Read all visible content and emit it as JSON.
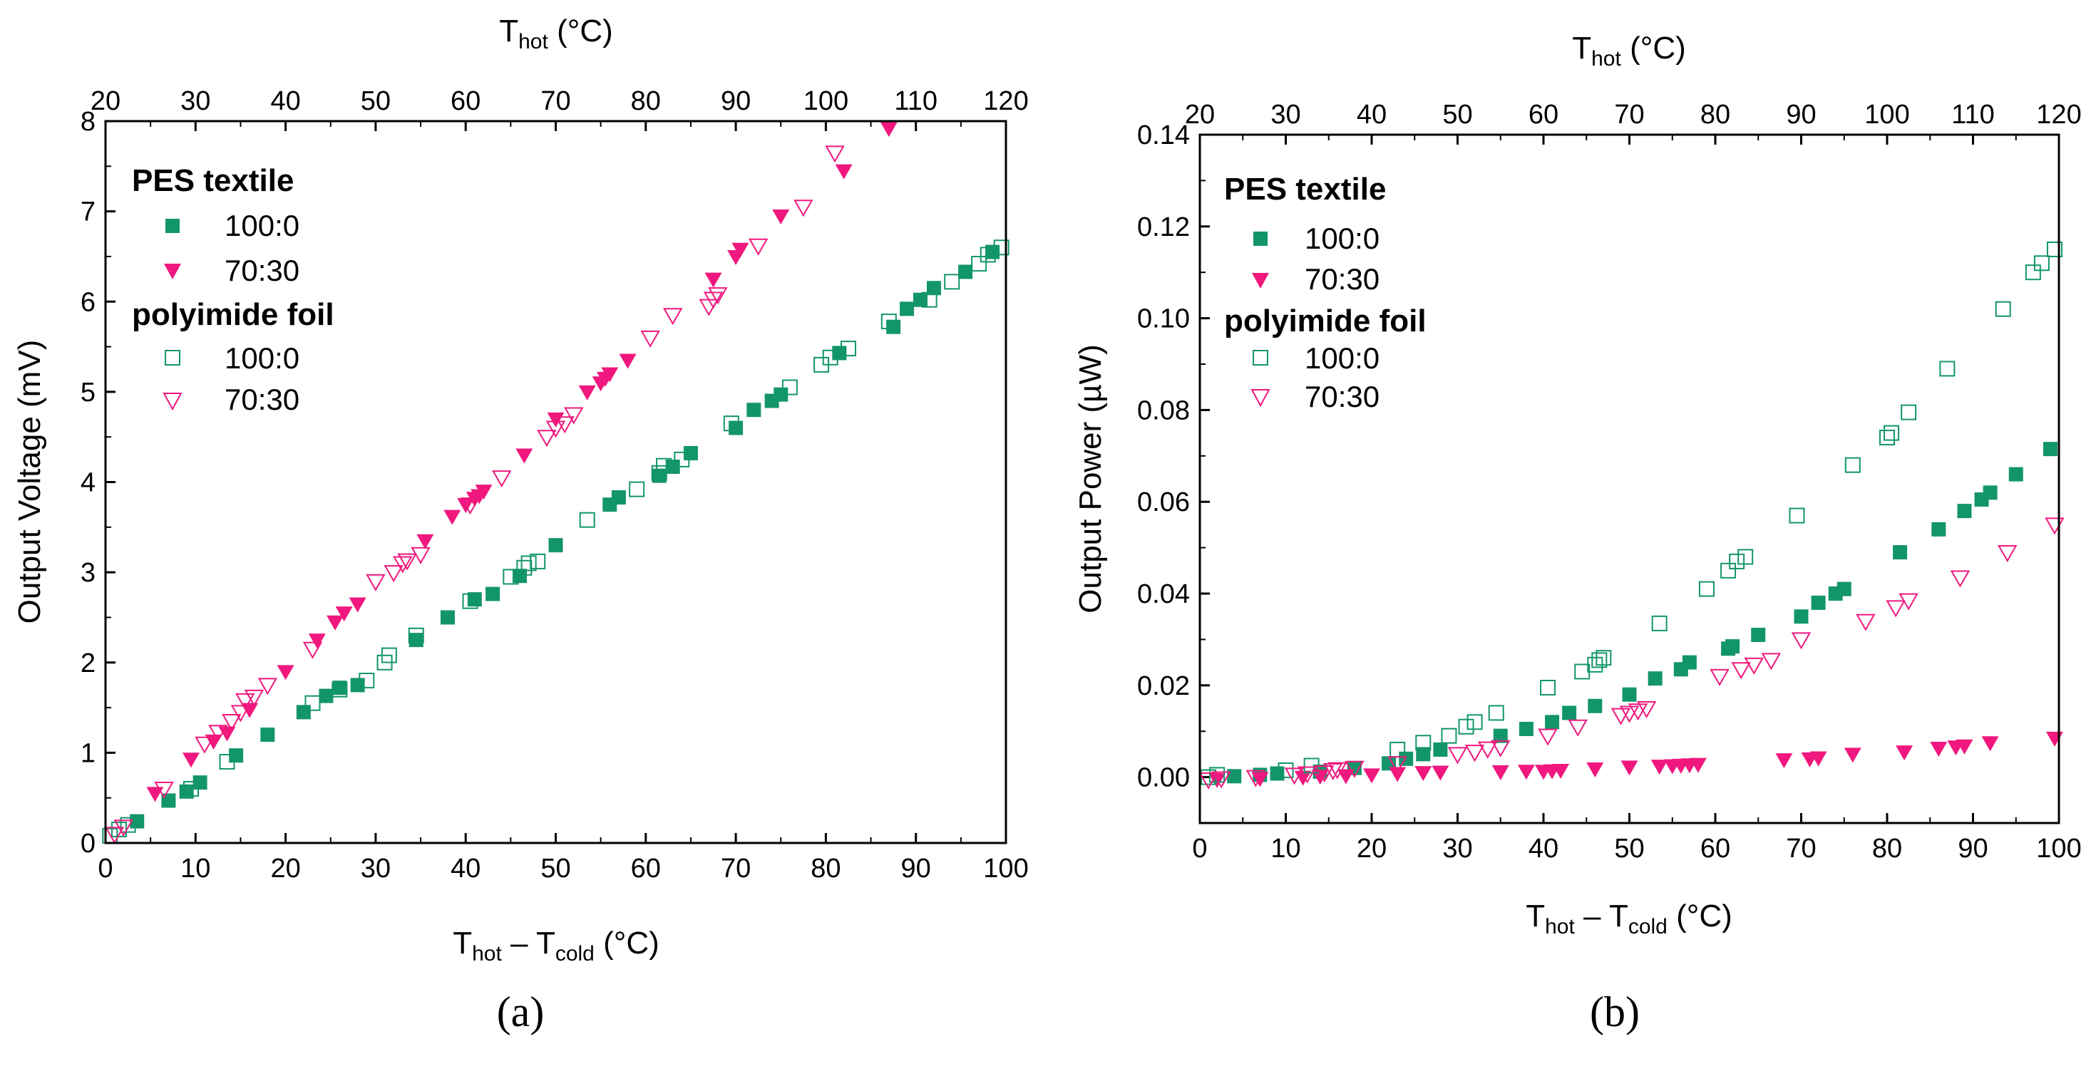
{
  "colors": {
    "green": "#13956B",
    "pink": "#F0187E",
    "axis": "#000000"
  },
  "panels": [
    {
      "id": "a",
      "label": "(a)",
      "ylabel": "Output Voltage (mV)",
      "xlabel": {
        "main": "T",
        "sub1": "hot",
        "minus": " – ",
        "main2": "T",
        "sub2": "cold",
        "unit": " (°C)"
      },
      "top_title": {
        "main": "T",
        "sub": "hot",
        "unit": " (°C)"
      },
      "x_ticks": [
        "0",
        "10",
        "20",
        "30",
        "40",
        "50",
        "60",
        "70",
        "80",
        "90",
        "100"
      ],
      "top_ticks": [
        "20",
        "30",
        "40",
        "50",
        "60",
        "70",
        "80",
        "90",
        "100",
        "110",
        "120"
      ],
      "y_ticks": [
        "0",
        "1",
        "2",
        "3",
        "4",
        "5",
        "6",
        "7",
        "8"
      ],
      "legend": {
        "group1": "PES textile",
        "group2": "polyimide foil",
        "entries": [
          "100:0",
          "70:30",
          "100:0",
          "70:30"
        ]
      }
    },
    {
      "id": "b",
      "label": "(b)",
      "ylabel": "Output Power (µW)",
      "xlabel": {
        "main": "T",
        "sub1": "hot",
        "minus": " – ",
        "main2": "T",
        "sub2": "cold",
        "unit": " (°C)"
      },
      "top_title": {
        "main": "T",
        "sub": "hot",
        "unit": " (°C)"
      },
      "x_ticks": [
        "0",
        "10",
        "20",
        "30",
        "40",
        "50",
        "60",
        "70",
        "80",
        "90",
        "100"
      ],
      "top_ticks": [
        "20",
        "30",
        "40",
        "50",
        "60",
        "70",
        "80",
        "90",
        "100",
        "110",
        "120"
      ],
      "y_ticks": [
        "0.00",
        "0.02",
        "0.04",
        "0.06",
        "0.08",
        "0.10",
        "0.12",
        "0.14"
      ],
      "legend": {
        "group1": "PES textile",
        "group2": "polyimide foil",
        "entries": [
          "100:0",
          "70:30",
          "100:0",
          "70:30"
        ]
      }
    }
  ],
  "chart_data": [
    {
      "type": "scatter",
      "title": "",
      "xlabel": "Thot − Tcold (°C)",
      "ylabel": "Output Voltage (mV)",
      "top_xlabel": "Thot (°C)",
      "xlim": [
        0,
        100
      ],
      "ylim": [
        0,
        8
      ],
      "top_xlim": [
        20,
        120
      ],
      "legend_position": "top-left",
      "series": [
        {
          "name": "PES textile 100:0",
          "marker": "square-filled",
          "color": "#13956B",
          "x": [
            3.5,
            7,
            9,
            10.5,
            14.5,
            18,
            22,
            24.5,
            26,
            28,
            34.5,
            38,
            41,
            43,
            46,
            50,
            56,
            57,
            61.5,
            63,
            65,
            70,
            72,
            74,
            75,
            81.5,
            87.5,
            89,
            90.5,
            92,
            95.5,
            98.5
          ],
          "y": [
            0.24,
            0.47,
            0.57,
            0.67,
            0.97,
            1.2,
            1.45,
            1.63,
            1.72,
            1.75,
            2.25,
            2.5,
            2.7,
            2.76,
            2.96,
            3.3,
            3.75,
            3.83,
            4.07,
            4.17,
            4.32,
            4.6,
            4.8,
            4.9,
            4.97,
            5.43,
            5.72,
            5.92,
            6.02,
            6.15,
            6.33,
            6.55
          ]
        },
        {
          "name": "PES textile 70:30",
          "marker": "triangle-down-filled",
          "color": "#F0187E",
          "x": [
            5.5,
            9.5,
            12,
            13.5,
            16,
            20,
            23.5,
            25.5,
            26.5,
            28,
            35.5,
            38.5,
            40,
            41,
            41.5,
            42,
            46.5,
            50,
            53.5,
            55,
            55.5,
            56,
            58,
            67.5,
            70,
            70.5,
            75,
            82,
            87
          ],
          "y": [
            0.55,
            0.93,
            1.13,
            1.22,
            1.48,
            1.9,
            2.25,
            2.45,
            2.55,
            2.65,
            3.35,
            3.62,
            3.75,
            3.82,
            3.85,
            3.9,
            4.3,
            4.7,
            5.0,
            5.1,
            5.15,
            5.2,
            5.35,
            6.25,
            6.5,
            6.58,
            6.95,
            7.45,
            7.92
          ]
        },
        {
          "name": "polyimide foil 100:0",
          "marker": "square-open",
          "color": "#13956B",
          "x": [
            0.5,
            1.5,
            2.5,
            9.5,
            13.5,
            23,
            26,
            29,
            31,
            31.5,
            34.5,
            40.5,
            45,
            46.5,
            47,
            48,
            53.5,
            59,
            61.5,
            62,
            64,
            69.5,
            76,
            79.5,
            80.5,
            82.5,
            87,
            91.5,
            94,
            97,
            98,
            99.5
          ],
          "y": [
            0.08,
            0.15,
            0.2,
            0.6,
            0.9,
            1.55,
            1.7,
            1.8,
            2.0,
            2.08,
            2.3,
            2.68,
            2.95,
            3.05,
            3.1,
            3.12,
            3.58,
            3.92,
            4.1,
            4.18,
            4.25,
            4.65,
            5.05,
            5.3,
            5.38,
            5.48,
            5.78,
            6.02,
            6.22,
            6.42,
            6.52,
            6.6
          ]
        },
        {
          "name": "polyimide foil 70:30",
          "marker": "triangle-down-open",
          "color": "#F0187E",
          "x": [
            1,
            2,
            6.5,
            11,
            12.5,
            14,
            15,
            15.5,
            16.5,
            18,
            23,
            30,
            32,
            33,
            33.5,
            35,
            40.5,
            44,
            49,
            50,
            51,
            52,
            60.5,
            63,
            67,
            67.5,
            68,
            72.5,
            77.5,
            81
          ],
          "y": [
            0.1,
            0.18,
            0.6,
            1.1,
            1.23,
            1.35,
            1.45,
            1.58,
            1.62,
            1.75,
            2.15,
            2.9,
            3.0,
            3.1,
            3.13,
            3.2,
            3.75,
            4.05,
            4.5,
            4.6,
            4.65,
            4.75,
            5.6,
            5.85,
            5.95,
            6.03,
            6.08,
            6.62,
            7.05,
            7.65
          ]
        }
      ]
    },
    {
      "type": "scatter",
      "title": "",
      "xlabel": "Thot − Tcold (°C)",
      "ylabel": "Output Power (µW)",
      "top_xlabel": "Thot (°C)",
      "xlim": [
        0,
        100
      ],
      "ylim": [
        -0.01,
        0.14
      ],
      "top_xlim": [
        20,
        120
      ],
      "legend_position": "top-left",
      "series": [
        {
          "name": "PES textile 100:0",
          "marker": "square-filled",
          "color": "#13956B",
          "x": [
            4,
            7,
            9,
            14,
            18,
            22,
            24,
            26,
            28,
            35,
            38,
            41,
            43,
            46,
            50,
            53,
            56,
            57,
            61.5,
            62,
            65,
            70,
            72,
            74,
            75,
            81.5,
            86,
            89,
            91,
            92,
            95,
            99
          ],
          "y": [
            0.0002,
            0.0005,
            0.0008,
            0.0012,
            0.002,
            0.003,
            0.004,
            0.005,
            0.006,
            0.009,
            0.0105,
            0.012,
            0.014,
            0.0155,
            0.018,
            0.0215,
            0.0235,
            0.025,
            0.028,
            0.0285,
            0.031,
            0.035,
            0.038,
            0.04,
            0.041,
            0.049,
            0.054,
            0.058,
            0.0605,
            0.062,
            0.066,
            0.0715
          ]
        },
        {
          "name": "PES textile 70:30",
          "marker": "triangle-down-filled",
          "color": "#F0187E",
          "x": [
            2,
            7,
            12,
            14,
            17,
            20,
            23,
            26,
            28,
            35,
            38,
            40,
            41,
            42,
            46,
            50,
            53.5,
            55,
            56,
            57,
            58,
            68,
            71,
            72,
            76,
            82,
            86,
            88,
            89,
            92,
            99.5
          ],
          "y": [
            -0.0005,
            -0.0003,
            0.0,
            0.0002,
            0.0003,
            0.0005,
            0.0008,
            0.001,
            0.0011,
            0.0012,
            0.0013,
            0.0013,
            0.0014,
            0.0015,
            0.0018,
            0.0022,
            0.0024,
            0.0025,
            0.0026,
            0.0027,
            0.0028,
            0.0038,
            0.004,
            0.0042,
            0.005,
            0.0055,
            0.0063,
            0.0066,
            0.0068,
            0.0075,
            0.0085
          ]
        },
        {
          "name": "polyimide foil 100:0",
          "marker": "square-open",
          "color": "#13956B",
          "x": [
            1,
            2,
            10,
            13,
            23,
            26,
            29,
            31,
            32,
            34.5,
            40.5,
            44.5,
            46,
            46.5,
            47,
            53.5,
            59,
            61.5,
            62.5,
            63.5,
            69.5,
            76,
            80,
            80.5,
            82.5,
            87,
            93.5,
            97,
            98,
            99.5
          ],
          "y": [
            0.0,
            0.0005,
            0.0015,
            0.0025,
            0.006,
            0.0075,
            0.009,
            0.011,
            0.012,
            0.014,
            0.0195,
            0.023,
            0.0245,
            0.0255,
            0.026,
            0.0335,
            0.041,
            0.045,
            0.047,
            0.048,
            0.057,
            0.068,
            0.074,
            0.075,
            0.0795,
            0.089,
            0.102,
            0.11,
            0.112,
            0.115
          ]
        },
        {
          "name": "polyimide foil 70:30",
          "marker": "triangle-down-open",
          "color": "#F0187E",
          "x": [
            1,
            2.5,
            6.5,
            11,
            12.5,
            14.5,
            15.5,
            16,
            18,
            23,
            30,
            32,
            33.5,
            35,
            40.5,
            44,
            49,
            50,
            51,
            52,
            60.5,
            63,
            64.5,
            66.5,
            70,
            77.5,
            81,
            82.5,
            88.5,
            94,
            99.5
          ],
          "y": [
            -0.0005,
            -0.0003,
            0.0,
            0.0005,
            0.0008,
            0.001,
            0.0015,
            0.0017,
            0.002,
            0.003,
            0.005,
            0.0055,
            0.0062,
            0.0065,
            0.009,
            0.011,
            0.0135,
            0.014,
            0.0145,
            0.015,
            0.022,
            0.0235,
            0.0245,
            0.0255,
            0.03,
            0.034,
            0.037,
            0.0385,
            0.0435,
            0.049,
            0.055
          ]
        }
      ]
    }
  ]
}
